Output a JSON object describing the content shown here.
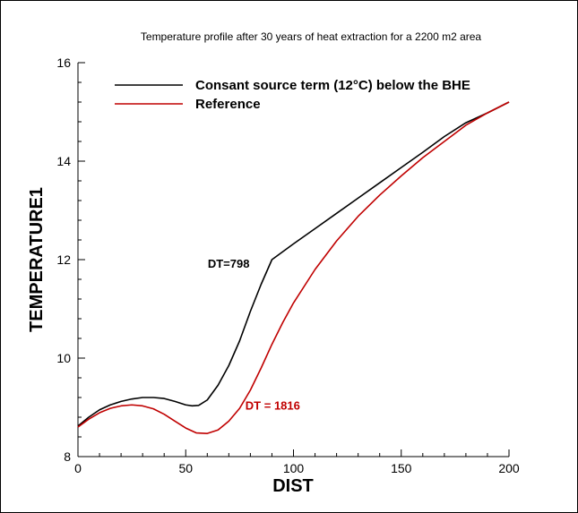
{
  "chart_data": {
    "type": "line",
    "title": "Temperature profile after 30 years of heat extraction for a 2200 m2 area",
    "xlabel": "DIST",
    "ylabel": "TEMPERATURE1",
    "xlim": [
      0,
      200
    ],
    "ylim": [
      8,
      16
    ],
    "xticks": [
      0,
      50,
      100,
      150,
      200
    ],
    "xtick_labels": [
      "0",
      "50",
      "100",
      "150",
      "200"
    ],
    "yticks": [
      8,
      10,
      12,
      14,
      16
    ],
    "ytick_labels": [
      "8",
      "10",
      "12",
      "14",
      "16"
    ],
    "grid": false,
    "legend_position": "top",
    "series": [
      {
        "name": "Consant source term (12°C) below the BHE",
        "color": "#000000",
        "x": [
          0,
          5,
          10,
          15,
          20,
          25,
          30,
          35,
          40,
          45,
          50,
          53,
          56,
          60,
          65,
          70,
          75,
          80,
          85,
          90,
          100,
          110,
          120,
          130,
          140,
          150,
          160,
          170,
          180,
          190,
          200
        ],
        "y": [
          8.62,
          8.8,
          8.95,
          9.05,
          9.12,
          9.17,
          9.2,
          9.2,
          9.18,
          9.12,
          9.05,
          9.03,
          9.04,
          9.15,
          9.45,
          9.85,
          10.35,
          10.95,
          11.5,
          12.0,
          12.32,
          12.63,
          12.94,
          13.25,
          13.56,
          13.87,
          14.18,
          14.5,
          14.78,
          14.98,
          15.2
        ]
      },
      {
        "name": "Reference",
        "color": "#c00000",
        "x": [
          0,
          5,
          10,
          15,
          20,
          25,
          30,
          35,
          40,
          45,
          50,
          55,
          60,
          65,
          70,
          75,
          80,
          85,
          90,
          95,
          100,
          110,
          120,
          130,
          140,
          150,
          160,
          170,
          180,
          190,
          200
        ],
        "y": [
          8.6,
          8.76,
          8.89,
          8.98,
          9.03,
          9.05,
          9.03,
          8.97,
          8.86,
          8.72,
          8.58,
          8.48,
          8.47,
          8.54,
          8.72,
          8.98,
          9.35,
          9.8,
          10.28,
          10.72,
          11.12,
          11.8,
          12.38,
          12.88,
          13.31,
          13.7,
          14.07,
          14.4,
          14.73,
          14.98,
          15.2
        ]
      }
    ],
    "annotations": [
      {
        "text": "DT=798",
        "x": 90,
        "y": 12.0,
        "color": "#000000"
      },
      {
        "text": "DT = 1816",
        "x": 81,
        "y": 9.05,
        "color": "#c00000"
      }
    ]
  }
}
